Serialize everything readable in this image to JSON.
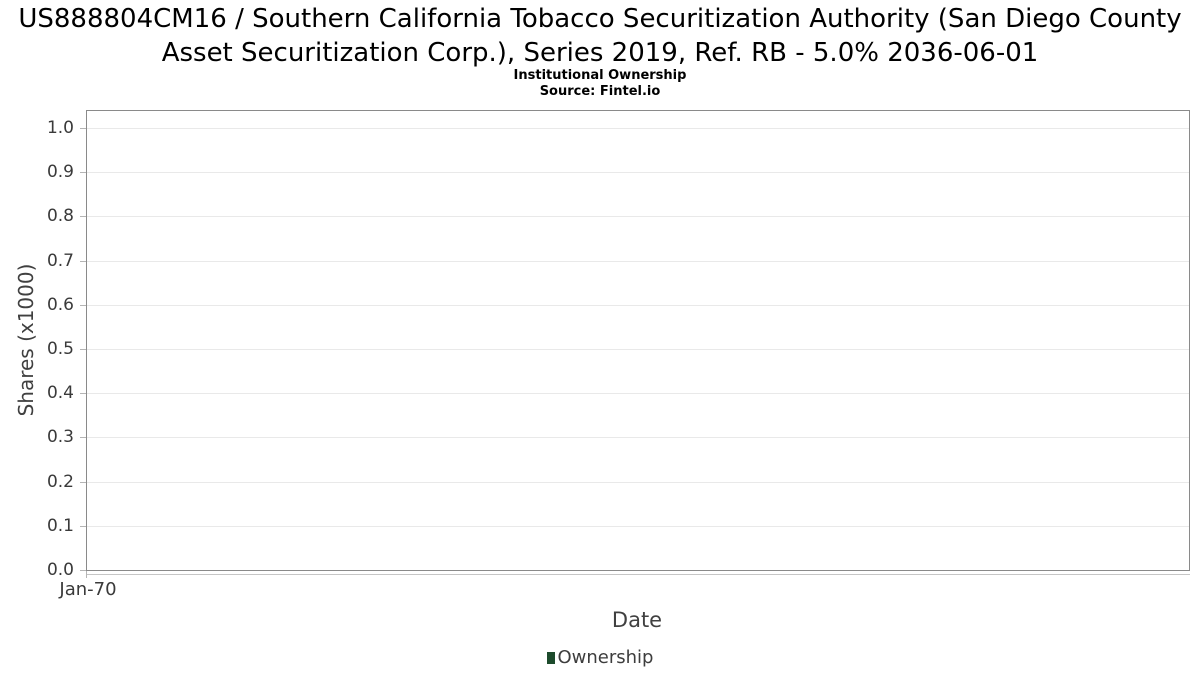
{
  "header": {
    "title": "US888804CM16 / Southern California Tobacco Securitization Authority (San Diego County Asset Securitization Corp.), Series 2019, Ref. RB - 5.0% 2036-06-01",
    "subtitle": "Institutional Ownership",
    "source": "Source: Fintel.io"
  },
  "chart_data": {
    "type": "line",
    "title": "US888804CM16 / Southern California Tobacco Securitization Authority (San Diego County Asset Securitization Corp.), Series 2019, Ref. RB - 5.0% 2036-06-01",
    "subtitle": "Institutional Ownership",
    "source": "Source: Fintel.io",
    "xlabel": "Date",
    "ylabel": "Shares (x1000)",
    "ylim": [
      0.0,
      1.04
    ],
    "grid": true,
    "legend_position": "bottom",
    "yticks": [
      {
        "value": 1.0,
        "label": "1.0"
      },
      {
        "value": 0.9,
        "label": "0.9"
      },
      {
        "value": 0.8,
        "label": "0.8"
      },
      {
        "value": 0.7,
        "label": "0.7"
      },
      {
        "value": 0.6,
        "label": "0.6"
      },
      {
        "value": 0.5,
        "label": "0.5"
      },
      {
        "value": 0.4,
        "label": "0.4"
      },
      {
        "value": 0.3,
        "label": "0.3"
      },
      {
        "value": 0.2,
        "label": "0.2"
      },
      {
        "value": 0.1,
        "label": "0.1"
      },
      {
        "value": 0.0,
        "label": "0.0"
      }
    ],
    "xticks": [
      {
        "label": "Jan-70",
        "pos": 0.0
      }
    ],
    "series": [
      {
        "name": "Ownership",
        "color": "#1d4b2c",
        "x": [],
        "y": []
      }
    ]
  },
  "colors": {
    "plot_border": "#8a8a8a",
    "gridline": "#e9e9e9",
    "tick": "#b5b5b5",
    "axis_text": "#3a3a3a",
    "legend_green": "#1d4b2c"
  }
}
